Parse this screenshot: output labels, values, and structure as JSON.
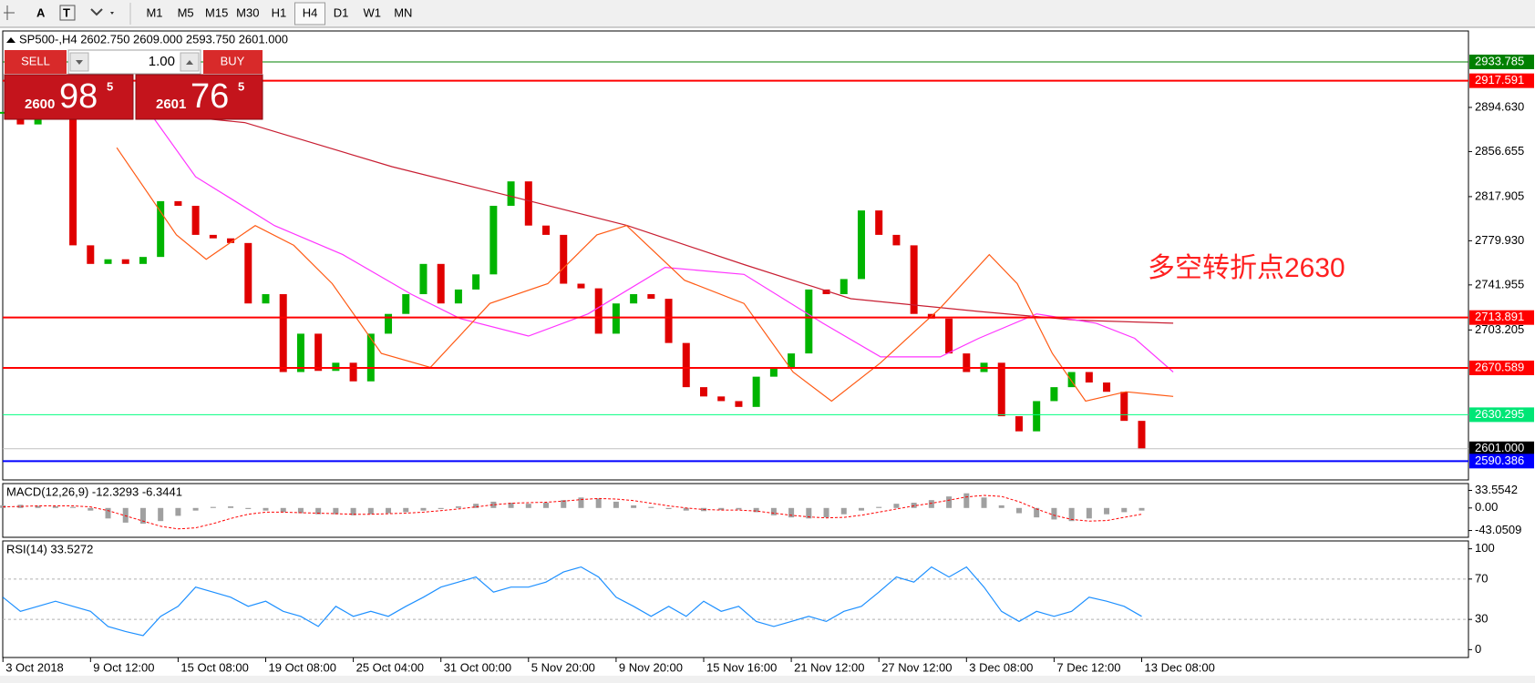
{
  "toolbar": {
    "tools": [
      "A",
      "T"
    ],
    "timeframes": [
      "M1",
      "M5",
      "M15",
      "M30",
      "H1",
      "H4",
      "D1",
      "W1",
      "MN"
    ],
    "active": "H4"
  },
  "trade_panel": {
    "sell": "SELL",
    "buy": "BUY",
    "lots": "1.00",
    "bid": {
      "big": "2600",
      "main": "98",
      "small": "5"
    },
    "ask": {
      "big": "2601",
      "main": "76",
      "small": "5"
    }
  },
  "annotation": "多空转折点2630",
  "chart_data": [
    {
      "type": "candlestick",
      "title": "SP500-,H4  2602.750 2609.000 2593.750 2601.000",
      "categories": [
        "3 Oct 2018",
        null,
        null,
        null,
        null,
        "9 Oct 12:00",
        null,
        null,
        null,
        null,
        "15 Oct 08:00",
        null,
        null,
        null,
        null,
        "19 Oct 08:00",
        null,
        null,
        null,
        null,
        "25 Oct 04:00",
        null,
        null,
        null,
        null,
        "31 Oct 00:00",
        null,
        null,
        null,
        null,
        "5 Nov 20:00",
        null,
        null,
        null,
        null,
        "9 Nov 20:00",
        null,
        null,
        null,
        null,
        "15 Nov 16:00",
        null,
        null,
        null,
        null,
        "21 Nov 12:00",
        null,
        null,
        null,
        null,
        "27 Nov 12:00",
        null,
        null,
        null,
        null,
        "3 Dec 08:00",
        null,
        null,
        null,
        null,
        "7 Dec 12:00",
        null,
        null,
        null,
        null,
        "13 Dec 08:00"
      ],
      "values": [
        2890,
        2880,
        2888,
        2885,
        2776,
        2760,
        2764,
        2760,
        2766,
        2814,
        2810,
        2785,
        2782,
        2778,
        2726,
        2734,
        2667,
        2700,
        2668,
        2675,
        2659,
        2700,
        2717,
        2734,
        2760,
        2726,
        2738,
        2751,
        2810,
        2831,
        2793,
        2785,
        2743,
        2739,
        2700,
        2726,
        2734,
        2730,
        2692,
        2654,
        2646,
        2642,
        2637,
        2663,
        2671,
        2683,
        2738,
        2734,
        2747,
        2806,
        2785,
        2776,
        2717,
        2713,
        2683,
        2667,
        2675,
        2629,
        2616,
        2642,
        2654,
        2667,
        2658,
        2650,
        2625,
        2601
      ],
      "up_color": "#00b400",
      "down_color": "#e00000",
      "overlays": [
        {
          "color": "#c81e32",
          "x": [
            8.2,
            13.8,
            22.2,
            27.8,
            35.6,
            42.3,
            48.4,
            55.7,
            61.3,
            66.8
          ],
          "values": [
            2890,
            2881.6,
            2843.7,
            2822.7,
            2793.2,
            2759.5,
            2730.1,
            2719.1,
            2711.6,
            2709
          ]
        },
        {
          "color": "#ff33ff",
          "x": [
            8.2,
            11,
            15.5,
            19.4,
            23.3,
            26.1,
            30,
            33.4,
            37.8,
            42.3,
            46.8,
            50.1,
            53.5,
            55.7,
            59,
            62.4,
            64.6,
            66.8
          ],
          "values": [
            2894,
            2835,
            2793,
            2768,
            2734,
            2713,
            2698,
            2717,
            2757,
            2751,
            2709,
            2680,
            2680,
            2696,
            2717,
            2709,
            2696,
            2667
          ]
        },
        {
          "color": "#ff5a14",
          "x": [
            6.5,
            9.9,
            11.6,
            14.4,
            16.6,
            18.8,
            21.6,
            24.4,
            27.8,
            31.1,
            33.9,
            35.6,
            38.9,
            42.3,
            45.1,
            47.3,
            50.1,
            53.5,
            56.3,
            57.9,
            59.9,
            61.8,
            64.1,
            66.8
          ],
          "values": [
            2860,
            2785,
            2764,
            2793,
            2776,
            2743,
            2683,
            2671,
            2726,
            2743,
            2785,
            2793,
            2746,
            2726,
            2667,
            2642,
            2675,
            2722,
            2768,
            2743,
            2683,
            2642,
            2650,
            2646
          ]
        }
      ],
      "levels": [
        {
          "value": 2933.785,
          "color": "#008000",
          "label_color": "#008000"
        },
        {
          "value": 2917.591,
          "color": "#ff0000",
          "label_color": "#ff0000"
        },
        {
          "value": 2713.891,
          "color": "#ff0000",
          "label_color": "#ff0000"
        },
        {
          "value": 2670.589,
          "color": "#ff0000",
          "label_color": "#ff0000"
        },
        {
          "value": 2630.295,
          "color": "#00ff7f",
          "label_color": "#00e676"
        },
        {
          "value": 2601,
          "label": "2601.000",
          "color": "#c0c0c0",
          "label_color": "#000000"
        },
        {
          "value": 2590.386,
          "color": "#0000ff",
          "label_color": "#0000ff"
        }
      ],
      "ylim": [
        2574.2,
        2960.4
      ],
      "yticks": [
        {
          "value": 2894.63,
          "label": "2894.630"
        },
        2856.655,
        2817.905,
        {
          "value": 2779.93,
          "label": "2779.930"
        },
        2741.955,
        2703.205
      ]
    },
    {
      "type": "macd",
      "title": "MACD(12,26,9) -12.3293 -6.3441",
      "series": [
        {
          "style": "histogram",
          "color": "#a0a0a0",
          "values": [
            5,
            6,
            4,
            3,
            2,
            -5,
            -20,
            -28,
            -30,
            -25,
            -15,
            -5,
            2,
            3,
            -2,
            -5,
            -8,
            -10,
            -12,
            -12,
            -14,
            -12,
            -10,
            -8,
            -5,
            -2,
            3,
            8,
            12,
            10,
            8,
            10,
            15,
            20,
            18,
            12,
            5,
            2,
            -2,
            -5,
            -6,
            -4,
            -3,
            -8,
            -14,
            -18,
            -20,
            -18,
            -12,
            -5,
            2,
            8,
            10,
            15,
            22,
            28,
            20,
            5,
            -10,
            -18,
            -22,
            -25,
            -20,
            -12,
            -8,
            -5
          ]
        },
        {
          "style": "dotted",
          "color": "#ff0000",
          "values": [
            2,
            3,
            4,
            4,
            4,
            2,
            -5,
            -15,
            -25,
            -35,
            -40,
            -38,
            -30,
            -20,
            -12,
            -8,
            -8,
            -9,
            -10,
            -11,
            -12,
            -12,
            -11,
            -10,
            -8,
            -5,
            -2,
            2,
            6,
            9,
            10,
            11,
            13,
            16,
            18,
            17,
            14,
            9,
            4,
            0,
            -3,
            -4,
            -4,
            -6,
            -10,
            -14,
            -17,
            -19,
            -18,
            -14,
            -8,
            -2,
            4,
            9,
            15,
            21,
            24,
            22,
            12,
            -2,
            -14,
            -22,
            -25,
            -24,
            -18,
            -12
          ]
        }
      ],
      "ylim": [
        -56,
        46.6
      ],
      "yticks": [
        33.5542,
        {
          "value": 0,
          "label": "0.00"
        },
        -43.0509
      ]
    },
    {
      "type": "line",
      "title": "RSI(14) 33.5272",
      "series": [
        {
          "color": "#1e90ff",
          "values": [
            52,
            38,
            43,
            48,
            43,
            38,
            23,
            18,
            14,
            33,
            43,
            62,
            57,
            52,
            43,
            48,
            38,
            33,
            23,
            43,
            33,
            38,
            33,
            43,
            52,
            62,
            67,
            72,
            57,
            62,
            62,
            67,
            77,
            82,
            72,
            52,
            43,
            33,
            43,
            33,
            48,
            38,
            43,
            28,
            23,
            28,
            33,
            28,
            38,
            43,
            57,
            72,
            67,
            82,
            72,
            82,
            62,
            38,
            28,
            38,
            33,
            38,
            52,
            48,
            43,
            33
          ]
        }
      ],
      "levels": [
        70,
        30
      ],
      "ylim": [
        -7.8,
        107.8
      ],
      "yticks": [
        100,
        70,
        30,
        0
      ]
    }
  ]
}
